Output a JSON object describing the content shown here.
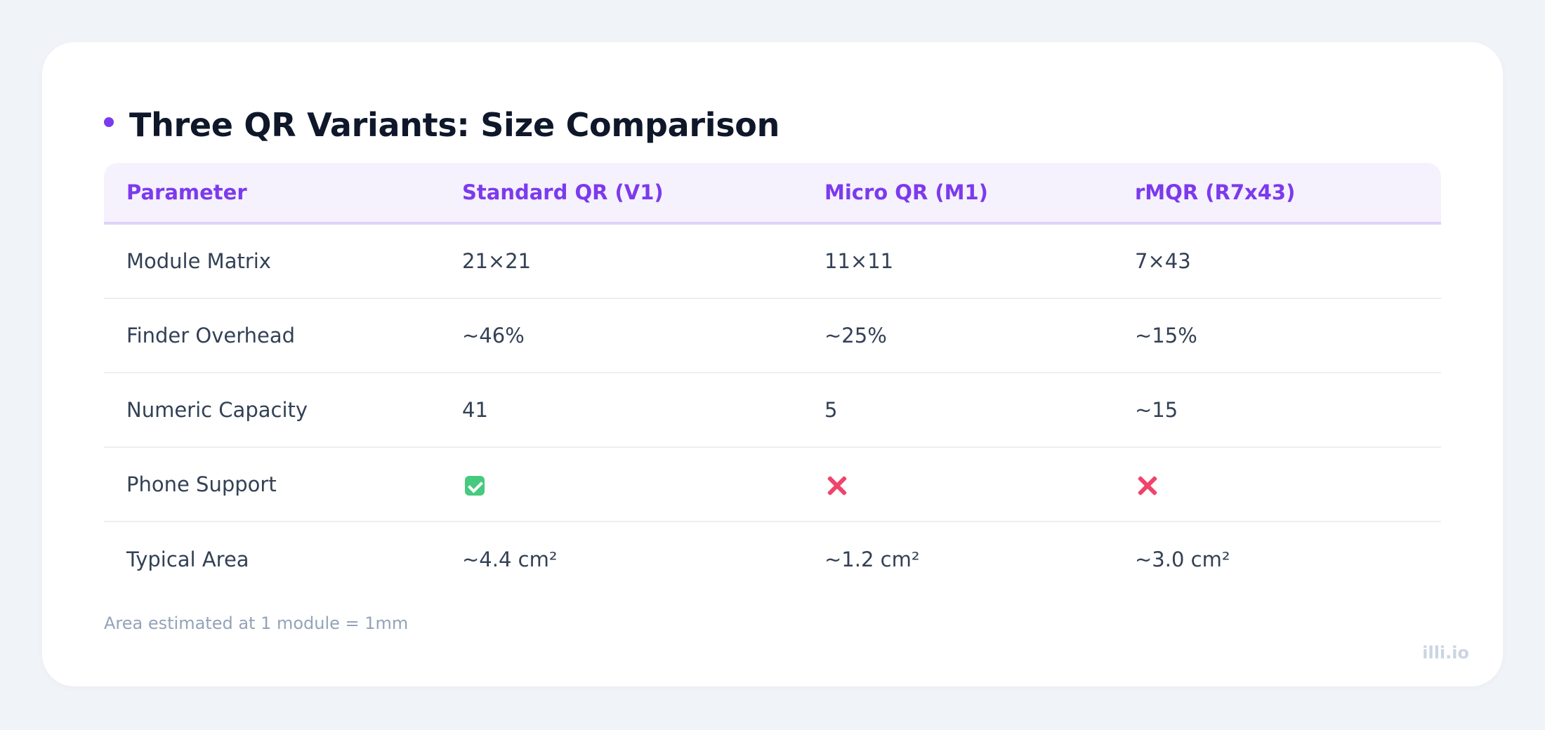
{
  "title": "Three QR Variants: Size Comparison",
  "accent_color": "#7c3aed",
  "table": {
    "headers": [
      "Parameter",
      "Standard QR (V1)",
      "Micro QR (M1)",
      "rMQR (R7x43)"
    ],
    "rows": [
      {
        "param": "Module Matrix",
        "standard": "21×21",
        "micro": "11×11",
        "rmqr": "7×43"
      },
      {
        "param": "Finder Overhead",
        "standard": "~46%",
        "micro": "~25%",
        "rmqr": "~15%"
      },
      {
        "param": "Numeric Capacity",
        "standard": "41",
        "micro": "5",
        "rmqr": "~15"
      },
      {
        "param": "Phone Support",
        "standard_icon": "check-icon",
        "micro_icon": "cross-icon",
        "rmqr_icon": "cross-icon"
      },
      {
        "param": "Typical Area",
        "standard": "~4.4 cm²",
        "micro": "~1.2 cm²",
        "rmqr": "~3.0 cm²"
      }
    ]
  },
  "footnote": "Area estimated at 1 module = 1mm",
  "brand": "illi.io"
}
